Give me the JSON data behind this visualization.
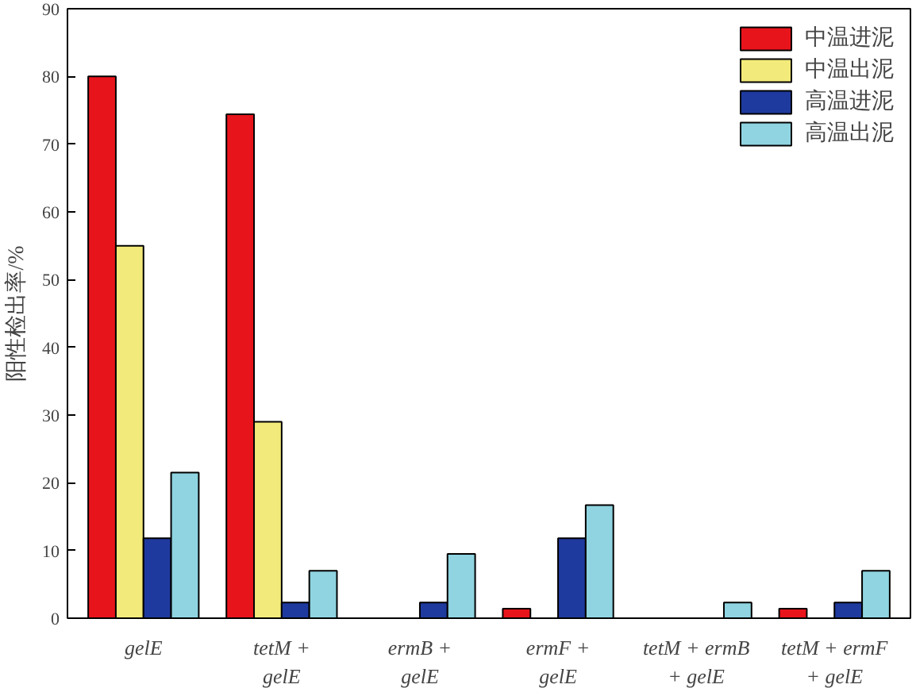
{
  "chart_data": {
    "type": "bar",
    "ylabel": "阳性检出率/%",
    "categories": [
      "gelE",
      "tetM +\ngelE",
      "ermB +\ngelE",
      "ermF +\ngelE",
      "tetM + ermB\n+ gelE",
      "tetM + ermF\n+ gelE"
    ],
    "series": [
      {
        "name": "中温进泥",
        "color": "#e8141c",
        "values": [
          80,
          74.4,
          0,
          1.4,
          0,
          1.4
        ]
      },
      {
        "name": "中温出泥",
        "color": "#f2ea7a",
        "values": [
          55,
          29,
          0,
          0,
          0,
          0
        ]
      },
      {
        "name": "高温进泥",
        "color": "#1f3a9e",
        "values": [
          11.8,
          2.3,
          2.3,
          11.8,
          0,
          2.3
        ]
      },
      {
        "name": "高温出泥",
        "color": "#8fd4e0",
        "values": [
          21.5,
          7,
          9.5,
          16.7,
          2.3,
          7
        ]
      }
    ],
    "ylim": [
      0,
      90
    ],
    "yticks": [
      0,
      10,
      20,
      30,
      40,
      50,
      60,
      70,
      80,
      90
    ],
    "grid": false,
    "legend": "top right"
  }
}
